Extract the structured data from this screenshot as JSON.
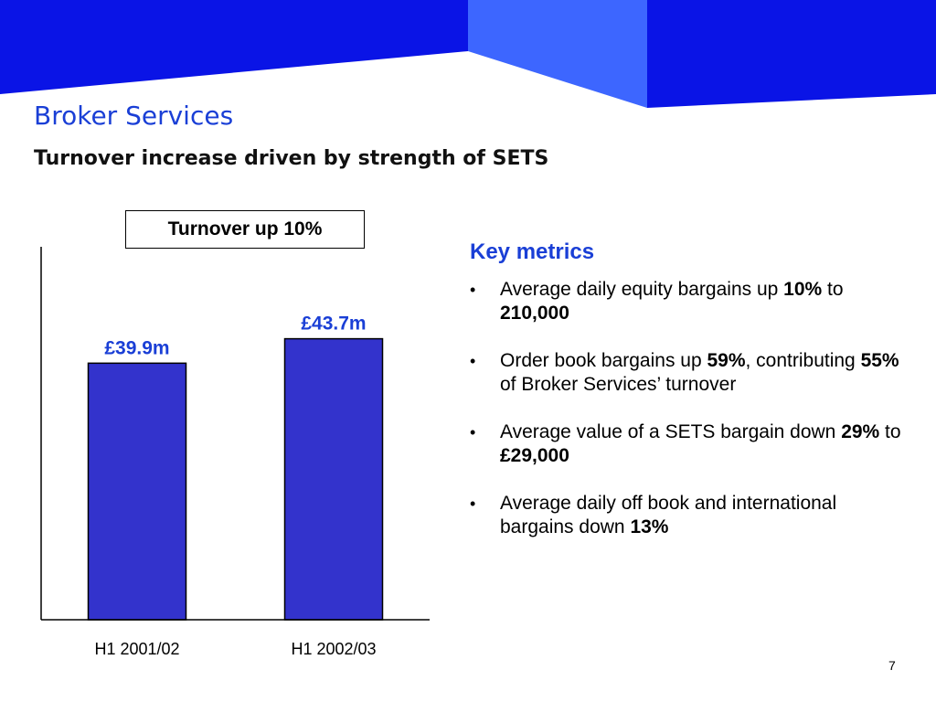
{
  "slide": {
    "title": "Broker Services",
    "subtitle": "Turnover increase driven by strength of SETS",
    "page_number": "7"
  },
  "callout": {
    "text": "Turnover up 10%"
  },
  "metrics": {
    "heading": "Key metrics",
    "bullet_glyph": "•",
    "items": [
      {
        "pre": "Average daily equity bargains up ",
        "b1": "10%",
        "mid": " to ",
        "b2": "210,000",
        "post": ""
      },
      {
        "pre": "Order book bargains up ",
        "b1": "59%",
        "mid": ", contributing ",
        "b2": "55%",
        "post": " of Broker Services’ turnover"
      },
      {
        "pre": "Average value of a SETS bargain down ",
        "b1": "29%",
        "mid": " to ",
        "b2": "£29,000",
        "post": ""
      },
      {
        "pre": "Average daily off book and international bargains down ",
        "b1": "13%",
        "mid": "",
        "b2": "",
        "post": ""
      }
    ]
  },
  "colors": {
    "banner_dark": "#0a14e6",
    "banner_light": "#3d66ff",
    "title": "#1a3fd6",
    "bar_fill": "#3333cc",
    "bar_label": "#1a3fd6"
  },
  "chart_data": {
    "type": "bar",
    "categories": [
      "H1 2001/02",
      "H1 2002/03"
    ],
    "values": [
      39.9,
      43.7
    ],
    "value_labels": [
      "£39.9m",
      "£43.7m"
    ],
    "title": "",
    "xlabel": "",
    "ylabel": "",
    "unit": "£m",
    "ylim": [
      0,
      58
    ],
    "grid": false,
    "legend": "none"
  }
}
